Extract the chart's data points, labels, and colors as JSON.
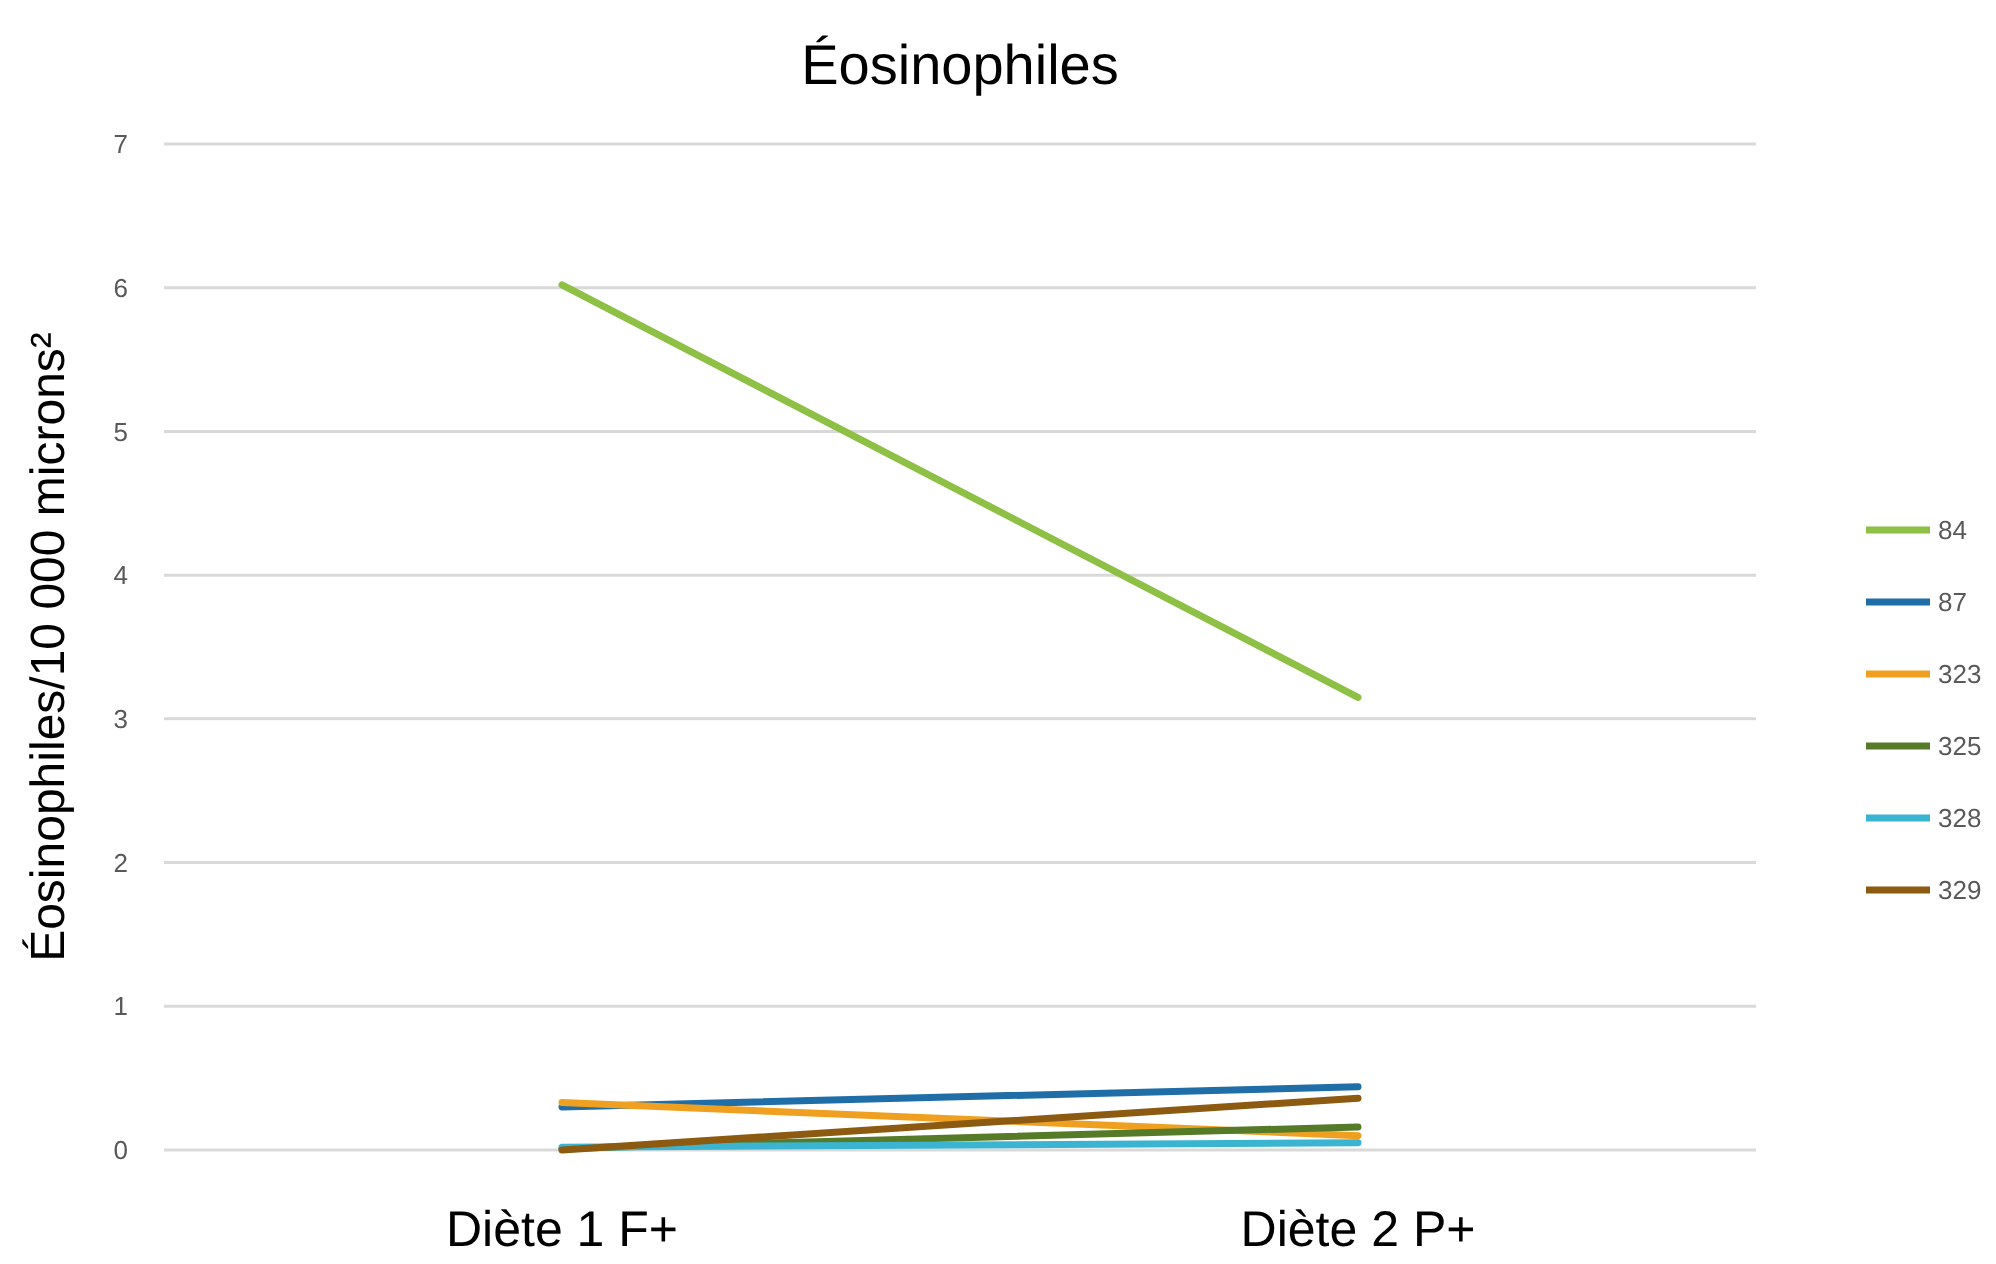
{
  "chart_data": {
    "type": "line",
    "title": "Éosinophiles",
    "ylabel": "Éosinophiles/10 000 microns²",
    "categories": [
      "Diète 1 F+",
      "Diète 2 P+"
    ],
    "series": [
      {
        "name": "84",
        "color": "#8dc044",
        "values": [
          6.02,
          3.15
        ]
      },
      {
        "name": "87",
        "color": "#1f6ea8",
        "values": [
          0.3,
          0.44
        ]
      },
      {
        "name": "323",
        "color": "#f0a020",
        "values": [
          0.33,
          0.1
        ]
      },
      {
        "name": "325",
        "color": "#557a28",
        "values": [
          0.01,
          0.16
        ]
      },
      {
        "name": "328",
        "color": "#3ab4d0",
        "values": [
          0.02,
          0.05
        ]
      },
      {
        "name": "329",
        "color": "#8c5a10",
        "values": [
          0,
          0.36
        ]
      }
    ],
    "ylim": [
      0,
      7
    ],
    "yticks": [
      0,
      1,
      2,
      3,
      4,
      5,
      6,
      7
    ],
    "grid": "y",
    "legend": "right",
    "marker": "none",
    "line_style": "solid"
  }
}
